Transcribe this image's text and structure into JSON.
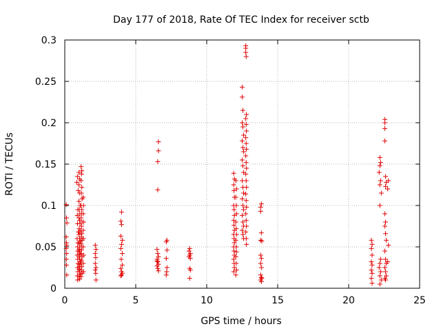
{
  "chart_data": {
    "type": "scatter",
    "title": "Day 177 of 2018, Rate Of TEC Index for receiver sctb",
    "xlabel": "GPS time / hours",
    "ylabel": "ROTI / TECUs",
    "xlim": [
      0,
      25
    ],
    "ylim": [
      0,
      0.3
    ],
    "xticks": [
      0,
      5,
      10,
      15,
      20,
      25
    ],
    "xtick_labels": [
      "0",
      "5",
      "10",
      "15",
      "20",
      "25"
    ],
    "yticks": [
      0,
      0.05,
      0.1,
      0.15,
      0.2,
      0.25,
      0.3
    ],
    "ytick_labels": [
      "0",
      "0.05",
      "0.1",
      "0.15",
      "0.2",
      "0.25",
      "0.3"
    ],
    "grid": true,
    "marker": "+",
    "color": "#e00000",
    "series": [
      {
        "name": "ROTI",
        "points": [
          [
            0.1,
            0.101
          ],
          [
            0.12,
            0.085
          ],
          [
            0.15,
            0.079
          ],
          [
            0.1,
            0.062
          ],
          [
            0.12,
            0.055
          ],
          [
            0.14,
            0.052
          ],
          [
            0.1,
            0.048
          ],
          [
            0.13,
            0.042
          ],
          [
            0.11,
            0.035
          ],
          [
            0.12,
            0.028
          ],
          [
            0.14,
            0.016
          ],
          [
            0.9,
            0.135
          ],
          [
            0.85,
            0.128
          ],
          [
            0.95,
            0.118
          ],
          [
            0.92,
            0.095
          ],
          [
            0.88,
            0.088
          ],
          [
            0.9,
            0.078
          ],
          [
            0.95,
            0.068
          ],
          [
            0.87,
            0.06
          ],
          [
            0.93,
            0.055
          ],
          [
            0.9,
            0.05
          ],
          [
            0.92,
            0.045
          ],
          [
            0.88,
            0.04
          ],
          [
            0.91,
            0.035
          ],
          [
            0.94,
            0.03
          ],
          [
            0.9,
            0.025
          ],
          [
            0.92,
            0.02
          ],
          [
            0.89,
            0.015
          ],
          [
            0.91,
            0.01
          ],
          [
            1.0,
            0.14
          ],
          [
            1.05,
            0.132
          ],
          [
            1.0,
            0.125
          ],
          [
            1.05,
            0.115
          ],
          [
            1.0,
            0.105
          ],
          [
            1.08,
            0.1
          ],
          [
            1.02,
            0.095
          ],
          [
            1.06,
            0.09
          ],
          [
            1.0,
            0.085
          ],
          [
            1.04,
            0.082
          ],
          [
            1.07,
            0.078
          ],
          [
            1.02,
            0.072
          ],
          [
            1.06,
            0.068
          ],
          [
            1.0,
            0.065
          ],
          [
            1.04,
            0.06
          ],
          [
            1.08,
            0.057
          ],
          [
            1.02,
            0.054
          ],
          [
            1.06,
            0.05
          ],
          [
            1.0,
            0.047
          ],
          [
            1.03,
            0.044
          ],
          [
            1.07,
            0.041
          ],
          [
            1.01,
            0.038
          ],
          [
            1.05,
            0.035
          ],
          [
            1.09,
            0.032
          ],
          [
            1.02,
            0.029
          ],
          [
            1.06,
            0.026
          ],
          [
            1.0,
            0.023
          ],
          [
            1.04,
            0.02
          ],
          [
            1.08,
            0.017
          ],
          [
            1.02,
            0.014
          ],
          [
            1.05,
            0.011
          ],
          [
            1.15,
            0.147
          ],
          [
            1.2,
            0.142
          ],
          [
            1.18,
            0.138
          ],
          [
            1.15,
            0.13
          ],
          [
            1.2,
            0.122
          ],
          [
            1.17,
            0.115
          ],
          [
            1.22,
            0.108
          ],
          [
            1.15,
            0.1
          ],
          [
            1.2,
            0.095
          ],
          [
            1.18,
            0.09
          ],
          [
            1.15,
            0.085
          ],
          [
            1.22,
            0.08
          ],
          [
            1.18,
            0.075
          ],
          [
            1.15,
            0.07
          ],
          [
            1.2,
            0.066
          ],
          [
            1.17,
            0.062
          ],
          [
            1.22,
            0.058
          ],
          [
            1.15,
            0.054
          ],
          [
            1.2,
            0.05
          ],
          [
            1.18,
            0.046
          ],
          [
            1.15,
            0.042
          ],
          [
            1.22,
            0.038
          ],
          [
            1.18,
            0.034
          ],
          [
            1.15,
            0.03
          ],
          [
            1.2,
            0.026
          ],
          [
            1.17,
            0.022
          ],
          [
            1.22,
            0.018
          ],
          [
            1.15,
            0.014
          ],
          [
            1.3,
            0.11
          ],
          [
            1.32,
            0.1
          ],
          [
            1.3,
            0.09
          ],
          [
            1.33,
            0.08
          ],
          [
            1.3,
            0.07
          ],
          [
            1.32,
            0.06
          ],
          [
            1.3,
            0.05
          ],
          [
            1.33,
            0.04
          ],
          [
            1.3,
            0.03
          ],
          [
            1.32,
            0.02
          ],
          [
            2.15,
            0.052
          ],
          [
            2.2,
            0.047
          ],
          [
            2.15,
            0.042
          ],
          [
            2.18,
            0.037
          ],
          [
            2.15,
            0.03
          ],
          [
            2.2,
            0.025
          ],
          [
            2.15,
            0.022
          ],
          [
            2.18,
            0.018
          ],
          [
            2.2,
            0.01
          ],
          [
            4.0,
            0.092
          ],
          [
            3.95,
            0.081
          ],
          [
            4.0,
            0.077
          ],
          [
            3.95,
            0.063
          ],
          [
            4.05,
            0.058
          ],
          [
            4.0,
            0.053
          ],
          [
            3.95,
            0.048
          ],
          [
            4.05,
            0.042
          ],
          [
            3.98,
            0.035
          ],
          [
            4.05,
            0.028
          ],
          [
            3.95,
            0.024
          ],
          [
            4.0,
            0.02
          ],
          [
            4.05,
            0.018
          ],
          [
            3.95,
            0.015
          ],
          [
            4.0,
            0.016
          ],
          [
            6.6,
            0.177
          ],
          [
            6.6,
            0.166
          ],
          [
            6.55,
            0.153
          ],
          [
            6.55,
            0.119
          ],
          [
            6.5,
            0.047
          ],
          [
            6.55,
            0.042
          ],
          [
            6.6,
            0.038
          ],
          [
            6.5,
            0.035
          ],
          [
            6.55,
            0.032
          ],
          [
            6.6,
            0.029
          ],
          [
            6.5,
            0.027
          ],
          [
            6.55,
            0.024
          ],
          [
            6.6,
            0.021
          ],
          [
            6.5,
            0.033
          ],
          [
            7.2,
            0.058
          ],
          [
            7.15,
            0.056
          ],
          [
            7.2,
            0.046
          ],
          [
            7.15,
            0.036
          ],
          [
            7.2,
            0.025
          ],
          [
            7.18,
            0.02
          ],
          [
            7.15,
            0.016
          ],
          [
            8.8,
            0.048
          ],
          [
            8.75,
            0.045
          ],
          [
            8.85,
            0.042
          ],
          [
            8.8,
            0.04
          ],
          [
            8.75,
            0.038
          ],
          [
            8.85,
            0.036
          ],
          [
            8.8,
            0.024
          ],
          [
            8.85,
            0.022
          ],
          [
            8.8,
            0.012
          ],
          [
            11.9,
            0.139
          ],
          [
            11.95,
            0.132
          ],
          [
            11.9,
            0.125
          ],
          [
            11.92,
            0.118
          ],
          [
            11.95,
            0.11
          ],
          [
            11.9,
            0.1
          ],
          [
            11.93,
            0.095
          ],
          [
            11.95,
            0.088
          ],
          [
            11.9,
            0.082
          ],
          [
            11.92,
            0.076
          ],
          [
            11.95,
            0.07
          ],
          [
            11.9,
            0.065
          ],
          [
            11.93,
            0.06
          ],
          [
            11.95,
            0.055
          ],
          [
            11.9,
            0.05
          ],
          [
            11.92,
            0.045
          ],
          [
            11.95,
            0.04
          ],
          [
            11.9,
            0.035
          ],
          [
            11.93,
            0.03
          ],
          [
            11.95,
            0.025
          ],
          [
            11.9,
            0.02
          ],
          [
            12.05,
            0.13
          ],
          [
            12.1,
            0.12
          ],
          [
            12.05,
            0.11
          ],
          [
            12.08,
            0.1
          ],
          [
            12.1,
            0.09
          ],
          [
            12.05,
            0.08
          ],
          [
            12.08,
            0.072
          ],
          [
            12.1,
            0.065
          ],
          [
            12.05,
            0.058
          ],
          [
            12.08,
            0.05
          ],
          [
            12.1,
            0.044
          ],
          [
            12.05,
            0.038
          ],
          [
            12.08,
            0.03
          ],
          [
            12.1,
            0.022
          ],
          [
            12.05,
            0.016
          ],
          [
            12.5,
            0.243
          ],
          [
            12.5,
            0.231
          ],
          [
            12.55,
            0.215
          ],
          [
            12.5,
            0.2
          ],
          [
            12.55,
            0.195
          ],
          [
            12.6,
            0.185
          ],
          [
            12.5,
            0.178
          ],
          [
            12.55,
            0.17
          ],
          [
            12.6,
            0.165
          ],
          [
            12.5,
            0.155
          ],
          [
            12.55,
            0.148
          ],
          [
            12.6,
            0.14
          ],
          [
            12.5,
            0.13
          ],
          [
            12.55,
            0.122
          ],
          [
            12.6,
            0.115
          ],
          [
            12.5,
            0.108
          ],
          [
            12.55,
            0.1
          ],
          [
            12.6,
            0.095
          ],
          [
            12.5,
            0.088
          ],
          [
            12.55,
            0.08
          ],
          [
            12.6,
            0.075
          ],
          [
            12.5,
            0.07
          ],
          [
            12.55,
            0.065
          ],
          [
            12.6,
            0.06
          ],
          [
            12.75,
            0.293
          ],
          [
            12.75,
            0.29
          ],
          [
            12.75,
            0.285
          ],
          [
            12.78,
            0.28
          ],
          [
            12.8,
            0.21
          ],
          [
            12.75,
            0.205
          ],
          [
            12.78,
            0.198
          ],
          [
            12.8,
            0.19
          ],
          [
            12.75,
            0.182
          ],
          [
            12.78,
            0.175
          ],
          [
            12.8,
            0.168
          ],
          [
            12.75,
            0.16
          ],
          [
            12.78,
            0.152
          ],
          [
            12.8,
            0.145
          ],
          [
            12.75,
            0.138
          ],
          [
            12.78,
            0.13
          ],
          [
            12.8,
            0.122
          ],
          [
            12.75,
            0.114
          ],
          [
            12.78,
            0.106
          ],
          [
            12.8,
            0.098
          ],
          [
            12.75,
            0.09
          ],
          [
            12.78,
            0.082
          ],
          [
            12.8,
            0.075
          ],
          [
            12.75,
            0.068
          ],
          [
            12.78,
            0.06
          ],
          [
            12.8,
            0.053
          ],
          [
            13.8,
            0.098
          ],
          [
            13.85,
            0.102
          ],
          [
            13.8,
            0.093
          ],
          [
            13.85,
            0.067
          ],
          [
            13.8,
            0.058
          ],
          [
            13.88,
            0.057
          ],
          [
            13.8,
            0.04
          ],
          [
            13.85,
            0.036
          ],
          [
            13.8,
            0.03
          ],
          [
            13.85,
            0.025
          ],
          [
            13.8,
            0.016
          ],
          [
            13.85,
            0.013
          ],
          [
            13.8,
            0.01
          ],
          [
            13.85,
            0.008
          ],
          [
            13.88,
            0.012
          ],
          [
            21.6,
            0.058
          ],
          [
            21.65,
            0.053
          ],
          [
            21.6,
            0.048
          ],
          [
            21.65,
            0.04
          ],
          [
            21.6,
            0.032
          ],
          [
            21.65,
            0.028
          ],
          [
            21.6,
            0.022
          ],
          [
            21.65,
            0.018
          ],
          [
            21.6,
            0.012
          ],
          [
            21.65,
            0.006
          ],
          [
            22.2,
            0.158
          ],
          [
            22.25,
            0.152
          ],
          [
            22.2,
            0.148
          ],
          [
            22.15,
            0.14
          ],
          [
            22.25,
            0.13
          ],
          [
            22.2,
            0.125
          ],
          [
            22.3,
            0.115
          ],
          [
            22.2,
            0.1
          ],
          [
            22.25,
            0.035
          ],
          [
            22.2,
            0.03
          ],
          [
            22.15,
            0.025
          ],
          [
            22.25,
            0.02
          ],
          [
            22.2,
            0.015
          ],
          [
            22.3,
            0.01
          ],
          [
            22.2,
            0.005
          ],
          [
            22.55,
            0.204
          ],
          [
            22.55,
            0.2
          ],
          [
            22.55,
            0.193
          ],
          [
            22.55,
            0.178
          ],
          [
            22.6,
            0.135
          ],
          [
            22.65,
            0.128
          ],
          [
            22.6,
            0.123
          ],
          [
            22.55,
            0.09
          ],
          [
            22.6,
            0.08
          ],
          [
            22.55,
            0.075
          ],
          [
            22.6,
            0.066
          ],
          [
            22.65,
            0.058
          ],
          [
            22.55,
            0.045
          ],
          [
            22.6,
            0.035
          ],
          [
            22.65,
            0.03
          ],
          [
            22.55,
            0.025
          ],
          [
            22.6,
            0.02
          ],
          [
            22.65,
            0.015
          ],
          [
            22.55,
            0.012
          ],
          [
            22.6,
            0.01
          ],
          [
            22.8,
            0.13
          ],
          [
            22.75,
            0.12
          ],
          [
            22.8,
            0.052
          ],
          [
            22.75,
            0.032
          ]
        ]
      }
    ]
  }
}
